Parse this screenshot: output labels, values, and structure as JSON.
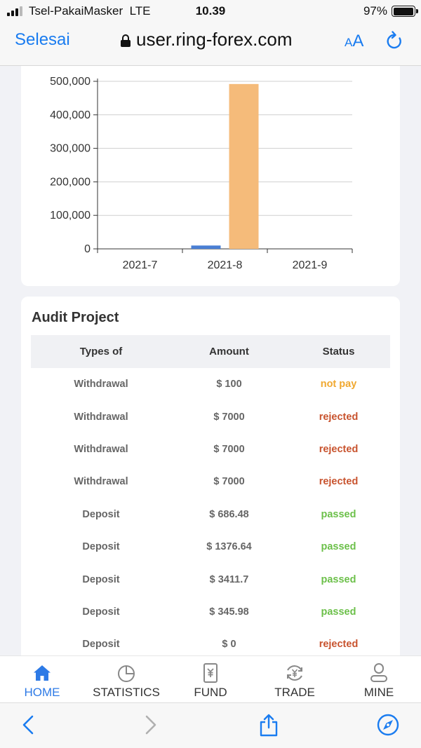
{
  "status_bar": {
    "carrier": "Tsel-PakaiMasker",
    "network": "LTE",
    "time": "10.39",
    "battery": "97%",
    "battery_level": 0.97
  },
  "browser": {
    "done_label": "Selesai",
    "url": "user.ring-forex.com",
    "text_size_small": "A",
    "text_size_big": "A"
  },
  "chart_data": {
    "type": "bar",
    "categories": [
      "2021-7",
      "2021-8",
      "2021-9"
    ],
    "series": [
      {
        "values": [
          0,
          10000,
          0
        ],
        "color": "#4a7fd4"
      },
      {
        "values": [
          0,
          492000,
          0
        ],
        "color": "#f5bb7a"
      }
    ],
    "yticks": [
      "500,000",
      "400,000",
      "300,000",
      "200,000",
      "100,000",
      "0"
    ],
    "ylim": [
      0,
      500000
    ],
    "grid": true
  },
  "audit": {
    "title": "Audit Project",
    "headers": {
      "type": "Types of",
      "amount": "Amount",
      "status": "Status"
    },
    "rows": [
      {
        "type": "Withdrawal",
        "amount": "$ 100",
        "status": "not pay"
      },
      {
        "type": "Withdrawal",
        "amount": "$ 7000",
        "status": "rejected"
      },
      {
        "type": "Withdrawal",
        "amount": "$ 7000",
        "status": "rejected"
      },
      {
        "type": "Withdrawal",
        "amount": "$ 7000",
        "status": "rejected"
      },
      {
        "type": "Deposit",
        "amount": "$ 686.48",
        "status": "passed"
      },
      {
        "type": "Deposit",
        "amount": "$ 1376.64",
        "status": "passed"
      },
      {
        "type": "Deposit",
        "amount": "$ 3411.7",
        "status": "passed"
      },
      {
        "type": "Deposit",
        "amount": "$ 345.98",
        "status": "passed"
      },
      {
        "type": "Deposit",
        "amount": "$ 0",
        "status": "rejected"
      }
    ],
    "status_colors": {
      "not pay": "#f0a830",
      "rejected": "#c8532e",
      "passed": "#6cc04a"
    }
  },
  "tabbar": {
    "items": [
      {
        "label": "HOME",
        "icon": "home-icon",
        "active": true
      },
      {
        "label": "STATISTICS",
        "icon": "pie-chart-icon",
        "active": false
      },
      {
        "label": "FUND",
        "icon": "fund-icon",
        "active": false
      },
      {
        "label": "TRADE",
        "icon": "trade-icon",
        "active": false
      },
      {
        "label": "MINE",
        "icon": "user-icon",
        "active": false
      }
    ],
    "active_color": "#2d7ae6"
  },
  "toolbar": {
    "icons": [
      "back-icon",
      "forward-icon",
      "share-icon",
      "compass-icon"
    ]
  }
}
